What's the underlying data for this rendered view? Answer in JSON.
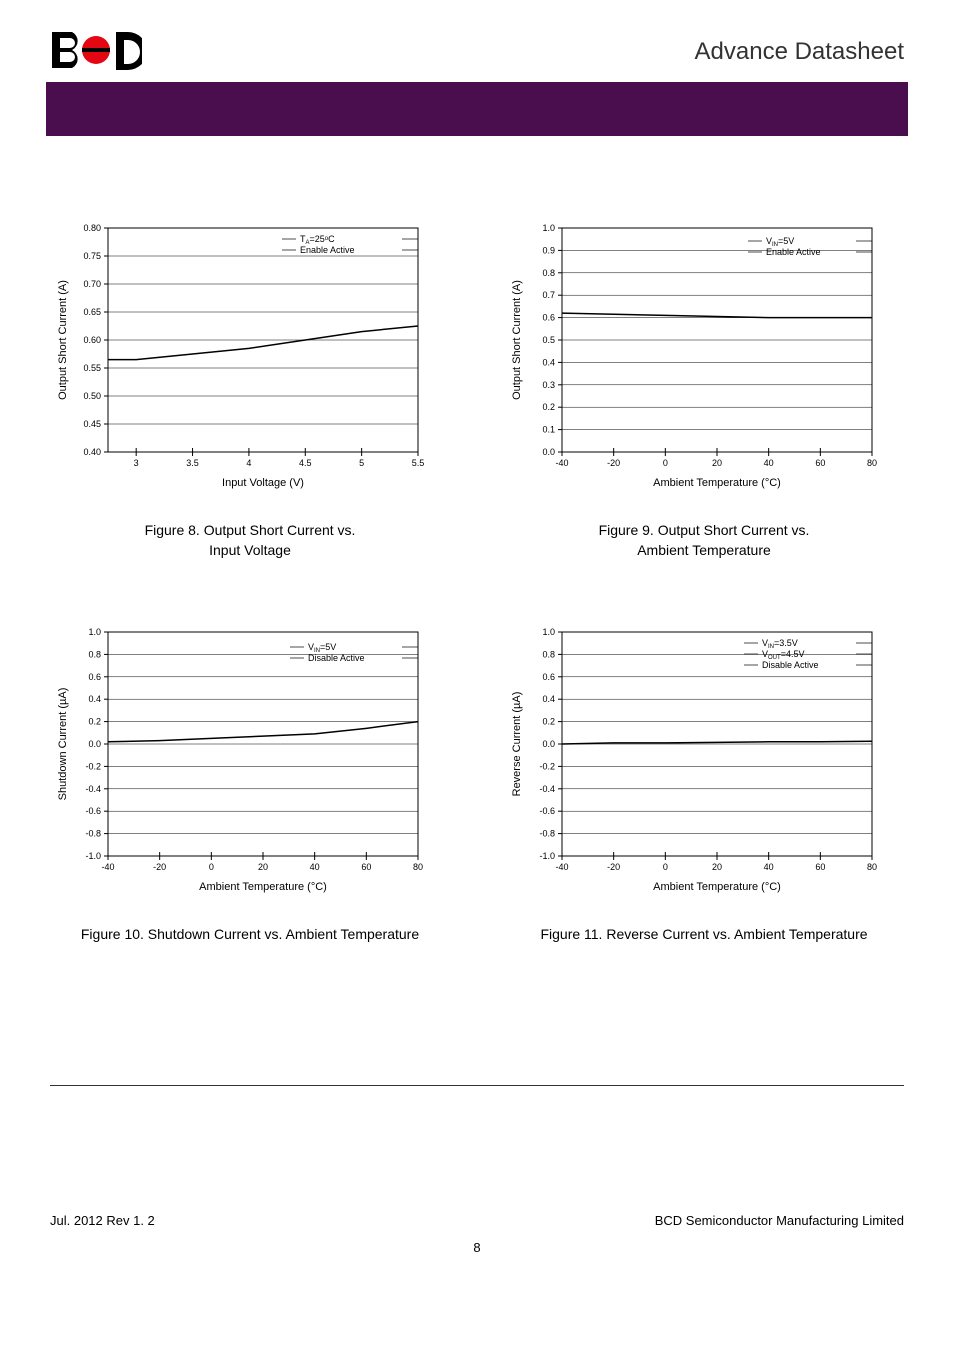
{
  "header": {
    "doc_title": "Advance Datasheet"
  },
  "footer": {
    "left": "Jul. 2012   Rev 1. 2",
    "right": "BCD Semiconductor Manufacturing Limited",
    "page": "8"
  },
  "charts": {
    "fig8": {
      "type": "line",
      "caption_line1": "Figure 8. Output Short Current     vs.",
      "caption_line2": "Input Voltage",
      "xlabel": "Input Voltage (V)",
      "ylabel": "Output Short Current (A)",
      "xlim": [
        2.75,
        5.5
      ],
      "ylim": [
        0.4,
        0.8
      ],
      "xticks": [
        3.0,
        3.5,
        4.0,
        4.5,
        5.0,
        5.5
      ],
      "yticks": [
        0.4,
        0.45,
        0.5,
        0.55,
        0.6,
        0.65,
        0.7,
        0.75,
        0.8
      ],
      "ytick_labels": [
        "0.40",
        "0.45",
        "0.50",
        "0.55",
        "0.60",
        "0.65",
        "0.70",
        "0.75",
        "0.80"
      ],
      "annotation": [
        "T",
        "A",
        "=25",
        "o",
        "C",
        "Enable Active"
      ],
      "annotation_text1": "T_A=25°C",
      "annotation_text2": "Enable Active",
      "line_color": "#000000",
      "data": {
        "x": [
          2.75,
          3.0,
          3.5,
          4.0,
          4.5,
          5.0,
          5.5
        ],
        "y": [
          0.565,
          0.565,
          0.575,
          0.585,
          0.6,
          0.615,
          0.625
        ]
      },
      "background_color": "#ffffff",
      "grid_color": "#000000",
      "axis_fontsize": 10,
      "label_fontsize": 12
    },
    "fig9": {
      "type": "line",
      "caption_line1": "Figure 9. Output Short Current     vs.",
      "caption_line2": "Ambient Temperature",
      "xlabel": "Ambient Temperature (°C)",
      "ylabel": "Output Short Current (A)",
      "xlim": [
        -40,
        80
      ],
      "ylim": [
        0.0,
        1.0
      ],
      "xticks": [
        -40,
        -20,
        0,
        20,
        40,
        60,
        80
      ],
      "yticks": [
        0.0,
        0.1,
        0.2,
        0.3,
        0.4,
        0.5,
        0.6,
        0.7,
        0.8,
        0.9,
        1.0
      ],
      "ytick_labels": [
        "0.0",
        "0.1",
        "0.2",
        "0.3",
        "0.4",
        "0.5",
        "0.6",
        "0.7",
        "0.8",
        "0.9",
        "1.0"
      ],
      "annotation_text1": "V_IN=5V",
      "annotation_text2": "Enable Active",
      "line_color": "#000000",
      "data": {
        "x": [
          -40,
          -20,
          0,
          20,
          40,
          60,
          80
        ],
        "y": [
          0.62,
          0.615,
          0.61,
          0.605,
          0.6,
          0.6,
          0.6
        ]
      },
      "background_color": "#ffffff"
    },
    "fig10": {
      "type": "line",
      "caption": "Figure 10. Shutdown Current vs. Ambient Temperature",
      "xlabel": "Ambient Temperature (°C)",
      "ylabel": "Shutdown Current (µA)",
      "xlim": [
        -40,
        80
      ],
      "ylim": [
        -1.0,
        1.0
      ],
      "xticks": [
        -40,
        -20,
        0,
        20,
        40,
        60,
        80
      ],
      "yticks": [
        -1.0,
        -0.8,
        -0.6,
        -0.4,
        -0.2,
        0.0,
        0.2,
        0.4,
        0.6,
        0.8,
        1.0
      ],
      "ytick_labels": [
        "-1.0",
        "-0.8",
        "-0.6",
        "-0.4",
        "-0.2",
        "0.0",
        "0.2",
        "0.4",
        "0.6",
        "0.8",
        "1.0"
      ],
      "annotation_text1": "V_IN=5V",
      "annotation_text2": "Disable Active",
      "line_color": "#000000",
      "data": {
        "x": [
          -40,
          -20,
          0,
          20,
          40,
          60,
          80
        ],
        "y": [
          0.02,
          0.03,
          0.05,
          0.07,
          0.09,
          0.14,
          0.2
        ]
      },
      "background_color": "#ffffff"
    },
    "fig11": {
      "type": "line",
      "caption": "Figure 11. Reverse Current vs. Ambient Temperature",
      "xlabel": "Ambient Temperature (°C)",
      "ylabel": "Reverse Current (µA)",
      "xlim": [
        -40,
        80
      ],
      "ylim": [
        -1.0,
        1.0
      ],
      "xticks": [
        -40,
        -20,
        0,
        20,
        40,
        60,
        80
      ],
      "yticks": [
        -1.0,
        -0.8,
        -0.6,
        -0.4,
        -0.2,
        0.0,
        0.2,
        0.4,
        0.6,
        0.8,
        1.0
      ],
      "ytick_labels": [
        "-1.0",
        "-0.8",
        "-0.6",
        "-0.4",
        "-0.2",
        "0.0",
        "0.2",
        "0.4",
        "0.6",
        "0.8",
        "1.0"
      ],
      "annotation_text1": "V_IN=3.5V",
      "annotation_text2": "V_OUT=4.5V",
      "annotation_text3": "Disable Active",
      "line_color": "#000000",
      "data": {
        "x": [
          -40,
          -20,
          0,
          20,
          40,
          60,
          80
        ],
        "y": [
          0.0,
          0.01,
          0.01,
          0.015,
          0.02,
          0.02,
          0.025
        ]
      },
      "background_color": "#ffffff"
    }
  }
}
